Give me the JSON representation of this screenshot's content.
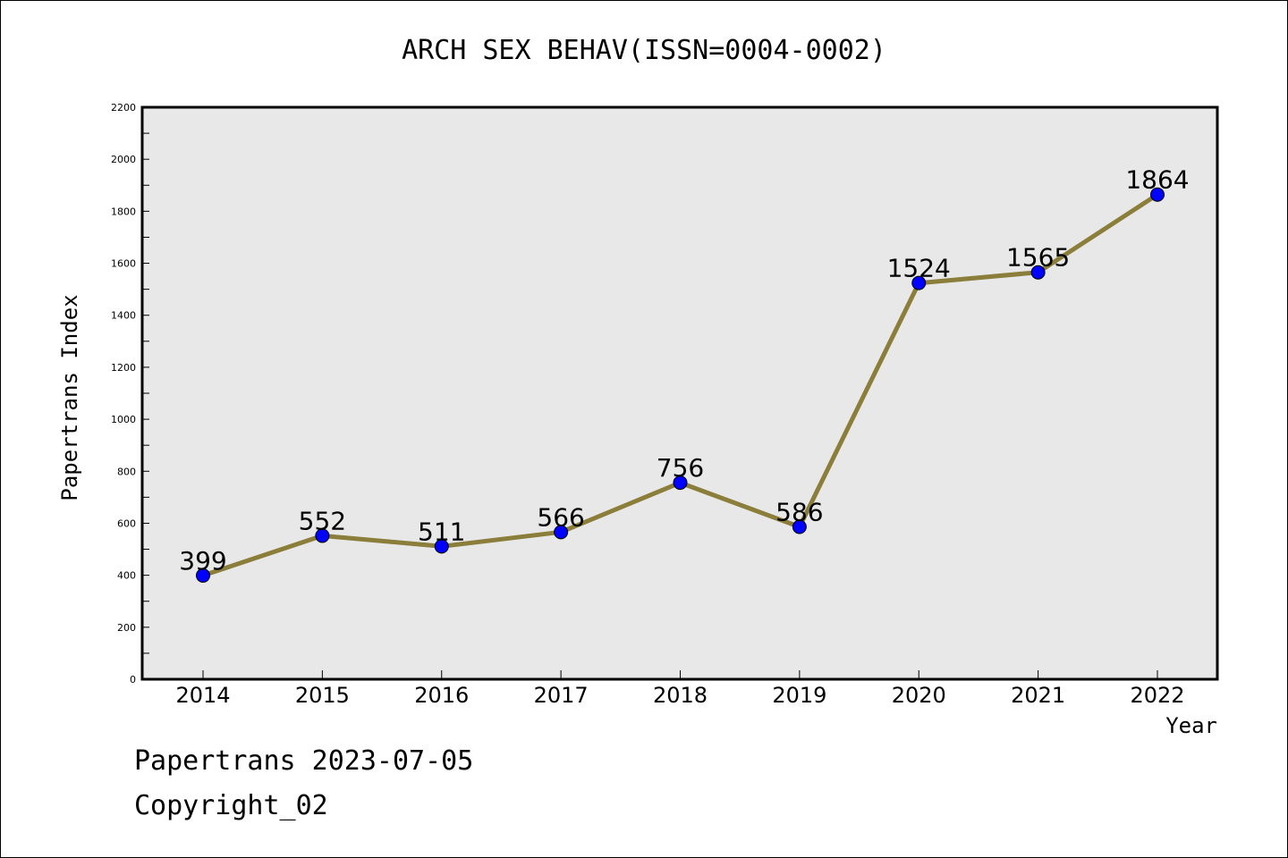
{
  "chart_data": {
    "type": "line",
    "title": "ARCH SEX BEHAV(ISSN=0004-0002)",
    "xlabel": "Year",
    "ylabel": "Papertrans Index",
    "categories": [
      "2014",
      "2015",
      "2016",
      "2017",
      "2018",
      "2019",
      "2020",
      "2021",
      "2022"
    ],
    "series": [
      {
        "values": [
          399,
          552,
          511,
          566,
          756,
          586,
          1524,
          1565,
          1864
        ],
        "data_labels": [
          "399",
          "552",
          "511",
          "566",
          "756",
          "586",
          "1524",
          "1565",
          "1864"
        ]
      }
    ],
    "ylim": [
      0,
      2200
    ],
    "yticks": [
      "0",
      "200",
      "400",
      "600",
      "800",
      "1000",
      "1200",
      "1400",
      "1600",
      "1800",
      "2000",
      "2200"
    ],
    "grid": false,
    "legend": "none",
    "colors": {
      "line": "#8b7d3a",
      "marker": "#0000ff",
      "plot_background": "#e8e8e8"
    }
  },
  "footer": {
    "date_text": "Papertrans 2023-07-05",
    "copyright_text": "Copyright_02"
  }
}
